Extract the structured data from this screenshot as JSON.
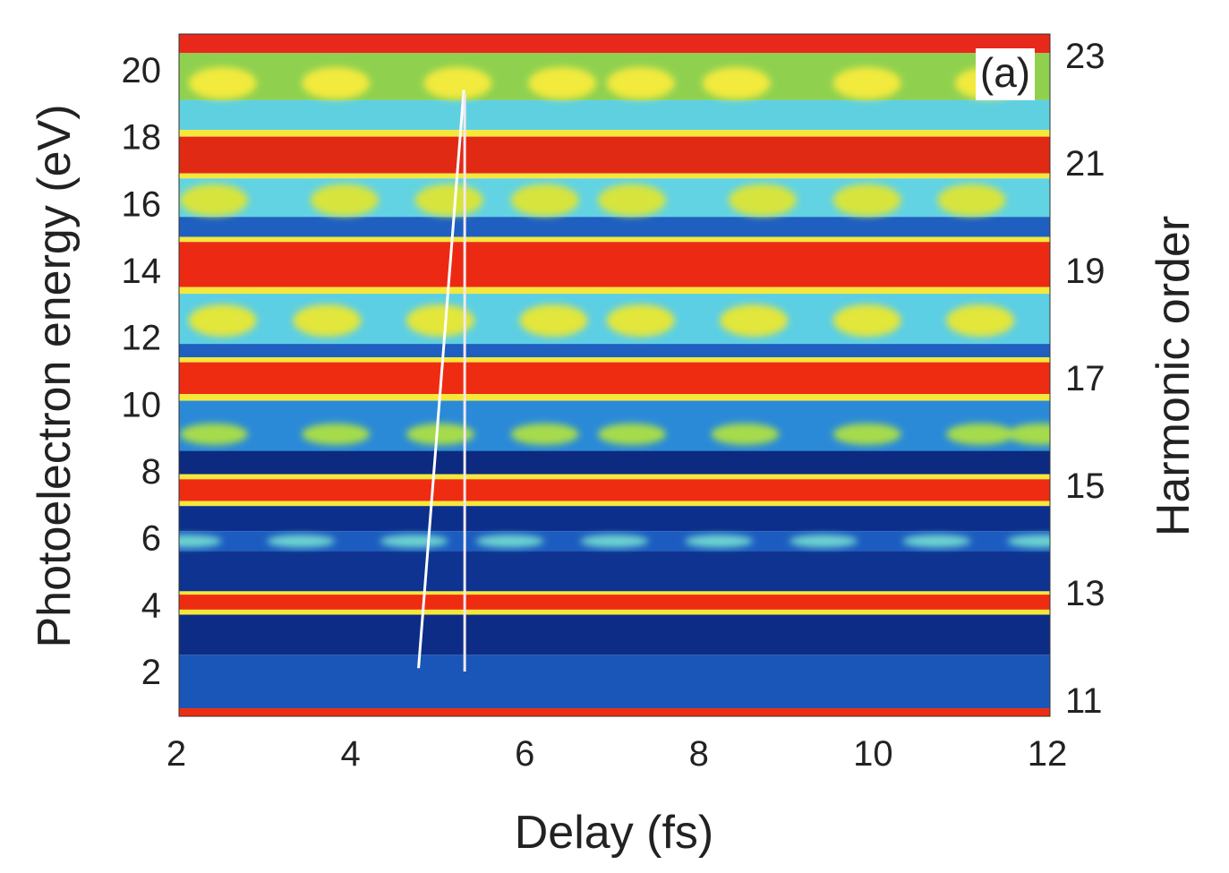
{
  "chart_data": {
    "type": "heatmap",
    "panel_label": "(a)",
    "xlabel": "Delay (fs)",
    "ylabel": "Photoelectron energy (eV)",
    "y2label": "Harmonic order",
    "xlim": [
      2,
      12
    ],
    "ylim": [
      0.66,
      21.07
    ],
    "y2lim": [
      10.7,
      23.4
    ],
    "xticks": [
      "2",
      "4",
      "6",
      "8",
      "10",
      "12"
    ],
    "yticks": [
      "2",
      "4",
      "6",
      "8",
      "10",
      "12",
      "14",
      "16",
      "18",
      "20"
    ],
    "y2ticks": [
      "11",
      "13",
      "15",
      "17",
      "19",
      "21",
      "23"
    ],
    "colormap": "jet",
    "bands": [
      {
        "from": 20.5,
        "to": 21.07,
        "color": "#e8281a"
      },
      {
        "from": 19.1,
        "to": 20.5,
        "color": "#8fd14f"
      },
      {
        "from": 18.2,
        "to": 19.1,
        "color": "#5fd0e0"
      },
      {
        "from": 18.0,
        "to": 18.2,
        "color": "#f5e83a"
      },
      {
        "from": 16.9,
        "to": 18.0,
        "color": "#e12a14"
      },
      {
        "from": 16.75,
        "to": 16.9,
        "color": "#f5e83a"
      },
      {
        "from": 15.6,
        "to": 16.75,
        "color": "#62d3e3"
      },
      {
        "from": 15.0,
        "to": 15.6,
        "color": "#1f5fc0"
      },
      {
        "from": 14.85,
        "to": 15.0,
        "color": "#f5e83a"
      },
      {
        "from": 13.5,
        "to": 14.85,
        "color": "#ec2a14"
      },
      {
        "from": 13.3,
        "to": 13.5,
        "color": "#f5e83a"
      },
      {
        "from": 11.8,
        "to": 13.3,
        "color": "#5ccfe4"
      },
      {
        "from": 11.4,
        "to": 11.8,
        "color": "#1f5fc0"
      },
      {
        "from": 11.25,
        "to": 11.4,
        "color": "#f5e83a"
      },
      {
        "from": 10.3,
        "to": 11.25,
        "color": "#ee2c12"
      },
      {
        "from": 10.1,
        "to": 10.3,
        "color": "#f5e83a"
      },
      {
        "from": 8.6,
        "to": 10.1,
        "color": "#2a8ad8"
      },
      {
        "from": 7.9,
        "to": 8.6,
        "color": "#0c2a80"
      },
      {
        "from": 7.75,
        "to": 7.9,
        "color": "#f5e83a"
      },
      {
        "from": 7.1,
        "to": 7.75,
        "color": "#ee2c12"
      },
      {
        "from": 6.95,
        "to": 7.1,
        "color": "#f5e83a"
      },
      {
        "from": 6.2,
        "to": 6.95,
        "color": "#0d2f8c"
      },
      {
        "from": 5.6,
        "to": 6.2,
        "color": "#1c5cc0"
      },
      {
        "from": 4.4,
        "to": 5.6,
        "color": "#0e3390"
      },
      {
        "from": 4.3,
        "to": 4.4,
        "color": "#f5e83a"
      },
      {
        "from": 3.85,
        "to": 4.3,
        "color": "#ee2c12"
      },
      {
        "from": 3.7,
        "to": 3.85,
        "color": "#f5e83a"
      },
      {
        "from": 2.5,
        "to": 3.7,
        "color": "#0d2c86"
      },
      {
        "from": 0.9,
        "to": 2.5,
        "color": "#1a55b8"
      },
      {
        "from": 0.66,
        "to": 0.9,
        "color": "#ee2c12"
      }
    ],
    "oscillation_rows": [
      {
        "energy": 19.6,
        "color": "#f2ea3c",
        "delays": [
          2.5,
          3.8,
          5.2,
          6.4,
          7.3,
          8.4,
          9.9,
          11.3
        ]
      },
      {
        "energy": 16.1,
        "color": "#d7e43e",
        "delays": [
          2.4,
          3.9,
          5.1,
          6.2,
          7.2,
          8.7,
          9.9,
          11.1
        ]
      },
      {
        "energy": 12.5,
        "color": "#e3e63a",
        "delays": [
          2.5,
          3.7,
          5.0,
          6.3,
          7.3,
          8.6,
          9.9,
          11.2
        ]
      },
      {
        "energy": 9.1,
        "color": "#a6dc4c",
        "delays": [
          2.4,
          3.8,
          5.0,
          6.2,
          7.2,
          8.5,
          9.9,
          11.2,
          11.9
        ]
      },
      {
        "energy": 5.9,
        "color": "#6fd6d0",
        "delays": [
          2.1,
          3.4,
          4.7,
          5.8,
          7.0,
          8.2,
          9.4,
          10.7,
          11.9
        ]
      }
    ],
    "guide_lines": [
      {
        "from": [
          4.75,
          2.1
        ],
        "to": [
          5.27,
          19.4
        ],
        "color": "#ffffff"
      },
      {
        "from": [
          5.28,
          2.0
        ],
        "to": [
          5.28,
          19.3
        ],
        "color": "#f2e8ee"
      }
    ]
  }
}
